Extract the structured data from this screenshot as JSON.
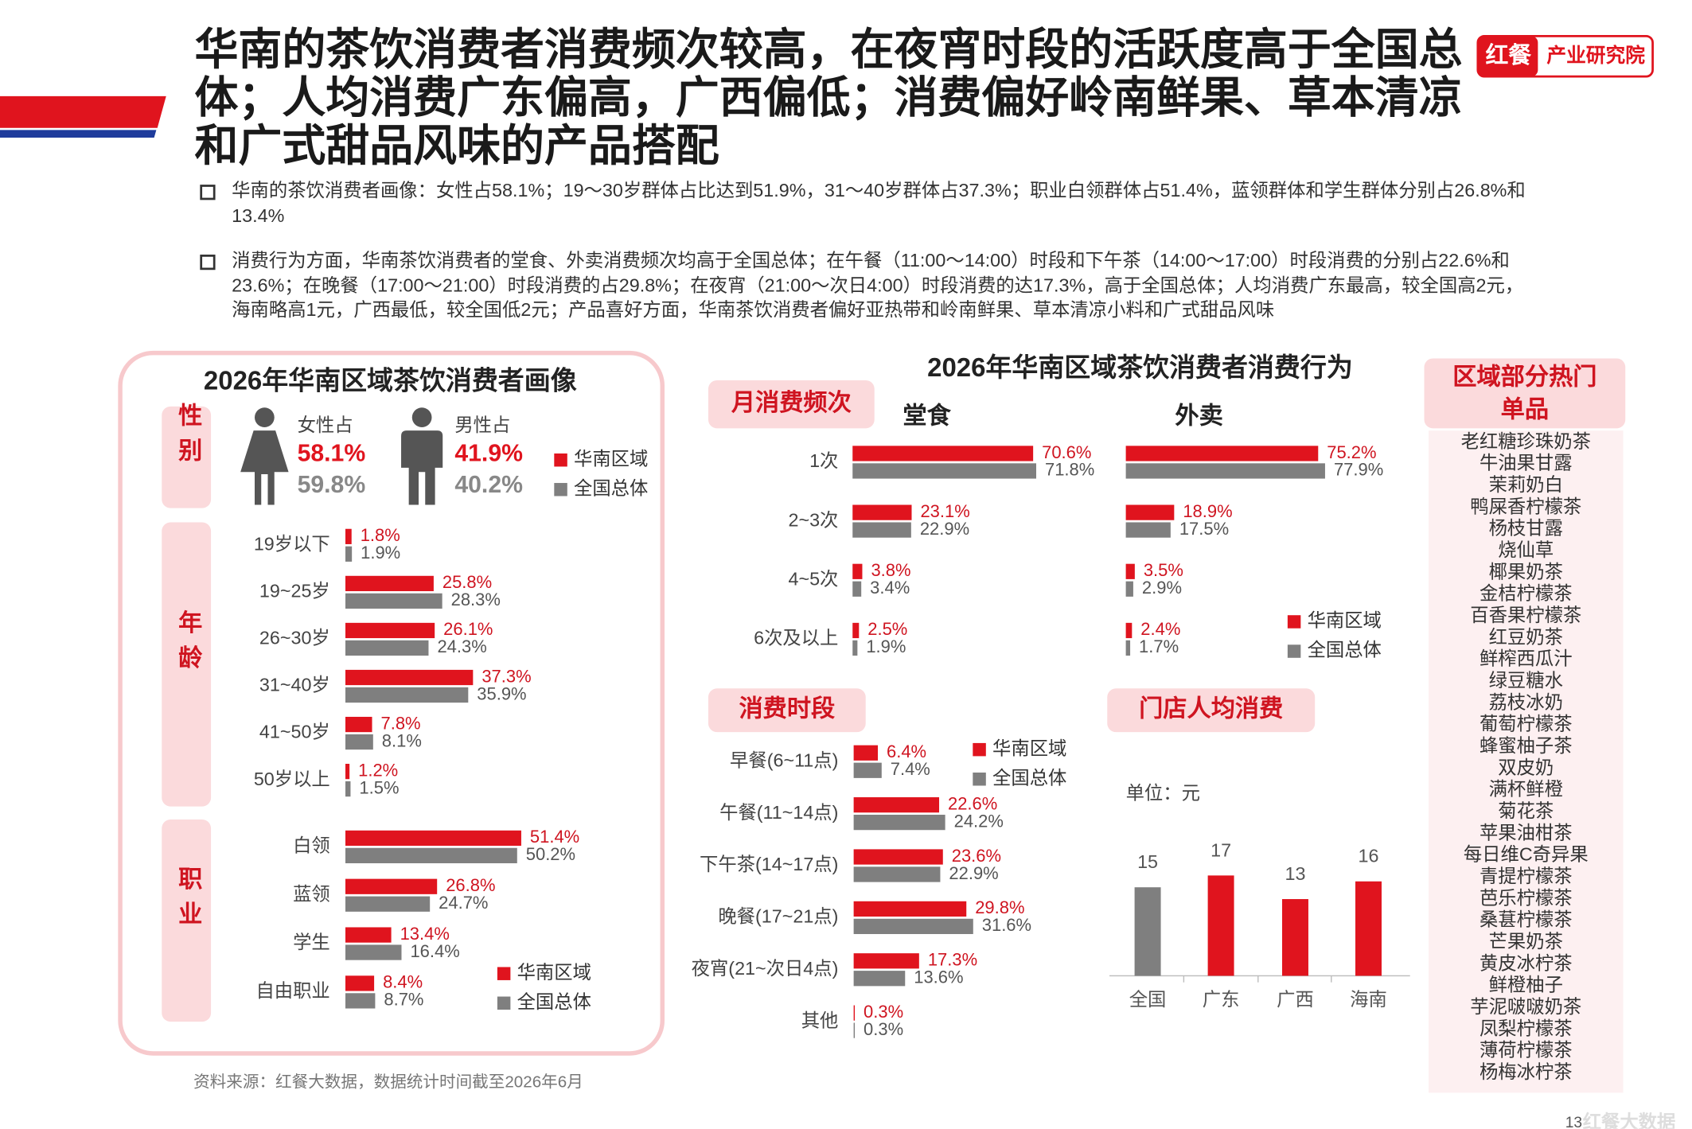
{
  "header": {
    "title": "华南的茶饮消费者消费频次较高，在夜宵时段的活跃度高于全国总体；人均消费广东偏高，广西偏低；消费偏好岭南鲜果、草本清凉和广式甜品风味的产品搭配"
  },
  "logo": {
    "brand": "红餐",
    "text": "产业研究院"
  },
  "bullets": [
    "华南的茶饮消费者画像：女性占58.1%；19～30岁群体占比达到51.9%，31～40岁群体占37.3%；职业白领群体占51.4%，蓝领群体和学生群体分别占26.8%和13.4%",
    "消费行为方面，华南茶饮消费者的堂食、外卖消费频次均高于全国总体；在午餐（11:00～14:00）时段和下午茶（14:00～17:00）时段消费的分别占22.6%和23.6%；在晚餐（17:00～21:00）时段消费的占29.8%；在夜宵（21:00～次日4:00）时段消费的达17.3%，高于全国总体；人均消费广东最高，较全国高2元，海南略高1元，广西最低，较全国低2元；产品喜好方面，华南茶饮消费者偏好亚热带和岭南鲜果、草本清凉小料和广式甜品风味"
  ],
  "portrait_panel": {
    "title": "2026年华南区域茶饮消费者画像"
  },
  "behavior_panel": {
    "title": "2026年华南区域茶饮消费者消费行为"
  },
  "chart_data": [
    {
      "type": "pictogram",
      "section": "性别",
      "categories": [
        "女性占",
        "男性占"
      ],
      "series": [
        {
          "name": "华南区域",
          "color": "#e0141e",
          "values": [
            58.1,
            41.9
          ],
          "value_labels": [
            "58.1%",
            "41.9%"
          ]
        },
        {
          "name": "全国总体",
          "color": "#7f7f7f",
          "values": [
            59.8,
            40.2
          ],
          "value_labels": [
            "59.8%",
            "40.2%"
          ]
        }
      ],
      "legend": true
    },
    {
      "type": "hbar",
      "section": "年龄",
      "categories": [
        "19岁以下",
        "19~25岁",
        "26~30岁",
        "31~40岁",
        "41~50岁",
        "50岁以上"
      ],
      "series": [
        {
          "name": "华南区域",
          "color": "#e0141e",
          "values": [
            1.8,
            25.8,
            26.1,
            37.3,
            7.8,
            1.2
          ],
          "value_labels": [
            "1.8%",
            "25.8%",
            "26.1%",
            "37.3%",
            "7.8%",
            "1.2%"
          ]
        },
        {
          "name": "全国总体",
          "color": "#7f7f7f",
          "values": [
            1.9,
            28.3,
            24.3,
            35.9,
            8.1,
            1.5
          ],
          "value_labels": [
            "1.9%",
            "28.3%",
            "24.3%",
            "35.9%",
            "8.1%",
            "1.5%"
          ]
        }
      ],
      "legend": false
    },
    {
      "type": "hbar",
      "section": "职业",
      "categories": [
        "白领",
        "蓝领",
        "学生",
        "自由职业"
      ],
      "series": [
        {
          "name": "华南区域",
          "color": "#e0141e",
          "values": [
            51.4,
            26.8,
            13.4,
            8.4
          ],
          "value_labels": [
            "51.4%",
            "26.8%",
            "13.4%",
            "8.4%"
          ]
        },
        {
          "name": "全国总体",
          "color": "#7f7f7f",
          "values": [
            50.2,
            24.7,
            16.4,
            8.7
          ],
          "value_labels": [
            "50.2%",
            "24.7%",
            "16.4%",
            "8.7%"
          ]
        }
      ],
      "legend": true
    },
    {
      "type": "hbar",
      "section": "月消费频次",
      "title": "堂食",
      "categories": [
        "1次",
        "2~3次",
        "4~5次",
        "6次及以上"
      ],
      "series": [
        {
          "name": "华南区域",
          "color": "#e0141e",
          "values": [
            70.6,
            23.1,
            3.8,
            2.5
          ],
          "value_labels": [
            "70.6%",
            "23.1%",
            "3.8%",
            "2.5%"
          ]
        },
        {
          "name": "全国总体",
          "color": "#7f7f7f",
          "values": [
            71.8,
            22.9,
            3.4,
            1.9
          ],
          "value_labels": [
            "71.8%",
            "22.9%",
            "3.4%",
            "1.9%"
          ]
        }
      ],
      "legend": false
    },
    {
      "type": "hbar",
      "title": "外卖",
      "series": [
        {
          "name": "华南区域",
          "color": "#e0141e",
          "values": [
            75.2,
            18.9,
            3.5,
            2.4
          ],
          "value_labels": [
            "75.2%",
            "18.9%",
            "3.5%",
            "2.4%"
          ]
        },
        {
          "name": "全国总体",
          "color": "#7f7f7f",
          "values": [
            77.9,
            17.5,
            2.9,
            1.7
          ],
          "value_labels": [
            "77.9%",
            "17.5%",
            "2.9%",
            "1.7%"
          ]
        }
      ],
      "legend": true
    },
    {
      "type": "hbar",
      "section": "消费时段",
      "categories": [
        "早餐(6~11点)",
        "午餐(11~14点)",
        "下午茶(14~17点)",
        "晚餐(17~21点)",
        "夜宵(21~次日4点)",
        "其他"
      ],
      "series": [
        {
          "name": "华南区域",
          "color": "#e0141e",
          "values": [
            6.4,
            22.6,
            23.6,
            29.8,
            17.3,
            0.3
          ],
          "value_labels": [
            "6.4%",
            "22.6%",
            "23.6%",
            "29.8%",
            "17.3%",
            "0.3%"
          ]
        },
        {
          "name": "全国总体",
          "color": "#7f7f7f",
          "values": [
            7.4,
            24.2,
            22.9,
            31.6,
            13.6,
            0.3
          ],
          "value_labels": [
            "7.4%",
            "24.2%",
            "22.9%",
            "31.6%",
            "13.6%",
            "0.3%"
          ]
        }
      ],
      "legend": true
    },
    {
      "type": "bar",
      "section": "门店人均消费",
      "unit": "单位：元",
      "categories": [
        "全国",
        "广东",
        "广西",
        "海南"
      ],
      "values": [
        15,
        17,
        13,
        16
      ],
      "colors": [
        "#7f7f7f",
        "#e0141e",
        "#e0141e",
        "#e0141e"
      ]
    }
  ],
  "hot_items": {
    "title": "区域部分热门单品",
    "items": [
      "老红糖珍珠奶茶",
      "牛油果甘露",
      "茉莉奶白",
      "鸭屎香柠檬茶",
      "杨枝甘露",
      "烧仙草",
      "椰果奶茶",
      "金桔柠檬茶",
      "百香果柠檬茶",
      "红豆奶茶",
      "鲜榨西瓜汁",
      "绿豆糖水",
      "荔枝冰奶",
      "葡萄柠檬茶",
      "蜂蜜柚子茶",
      "双皮奶",
      "满杯鲜橙",
      "菊花茶",
      "苹果油柑茶",
      "每日维C奇异果",
      "青提柠檬茶",
      "芭乐柠檬茶",
      "桑葚柠檬茶",
      "芒果奶茶",
      "黄皮冰柠茶",
      "鲜橙柚子",
      "芋泥啵啵奶茶",
      "凤梨柠檬茶",
      "薄荷柠檬茶",
      "杨梅冰柠茶"
    ]
  },
  "source": "资料来源：红餐大数据，数据统计时间截至2026年6月",
  "page_number": 13,
  "footer_brand": "红餐大数据"
}
